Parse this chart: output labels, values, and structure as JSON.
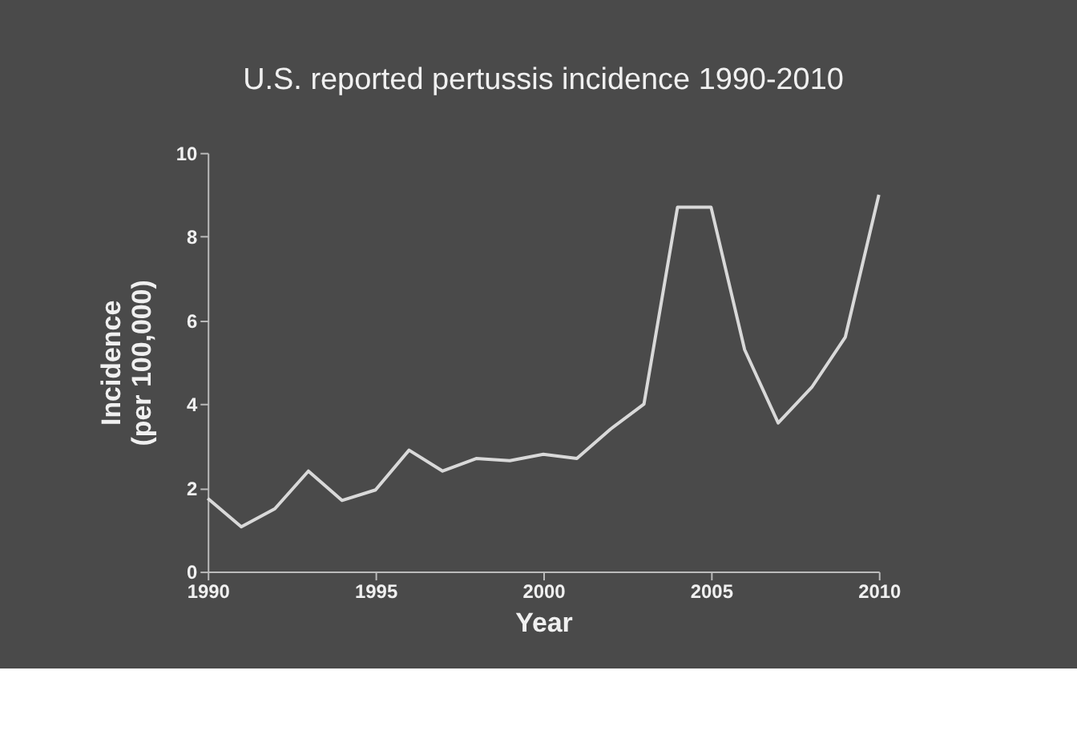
{
  "chart_data": {
    "type": "line",
    "title": "U.S. reported pertussis incidence 1990-2010",
    "xlabel": "Year",
    "ylabel": "Incidence (per 100,000)",
    "x": [
      1990,
      1991,
      1992,
      1993,
      1994,
      1995,
      1996,
      1997,
      1998,
      1999,
      2000,
      2001,
      2002,
      2003,
      2004,
      2005,
      2006,
      2007,
      2008,
      2009,
      2010
    ],
    "series": [
      {
        "color": "#d9d9d9",
        "values": [
          1.75,
          1.07,
          1.5,
          2.4,
          1.7,
          1.95,
          2.9,
          2.4,
          2.7,
          2.65,
          2.8,
          2.7,
          3.4,
          4.0,
          8.7,
          8.7,
          5.3,
          3.55,
          4.4,
          5.6,
          9.0
        ]
      }
    ],
    "xlim": [
      1990,
      2010
    ],
    "xticks": [
      1990,
      1995,
      2000,
      2005,
      2010
    ],
    "ylim": [
      0,
      10
    ],
    "yticks": [
      0,
      2,
      4,
      6,
      8,
      10
    ],
    "grid": false,
    "marker": "none",
    "line_style": "solid"
  }
}
